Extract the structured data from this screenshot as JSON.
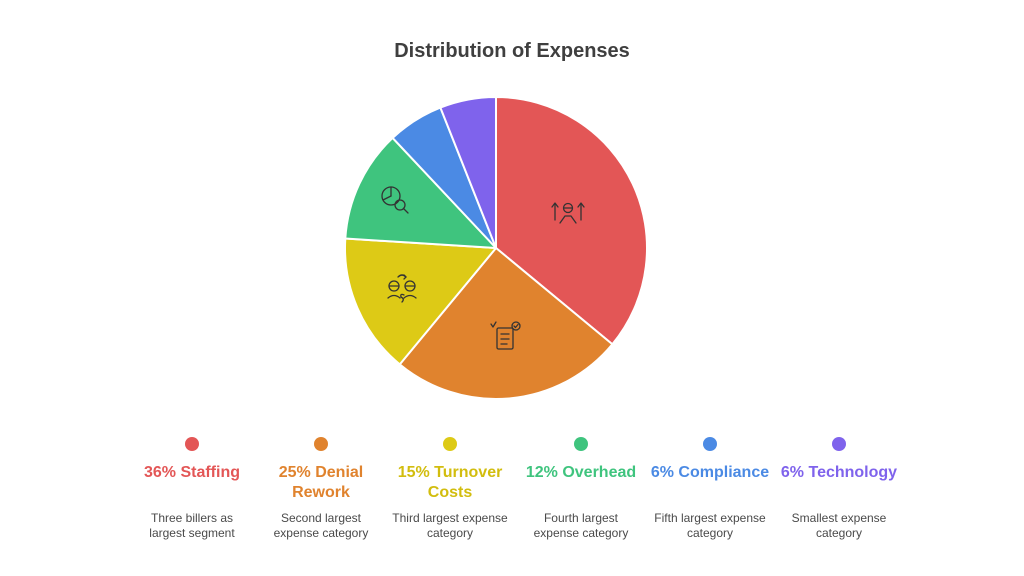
{
  "chart_data": {
    "type": "pie",
    "title": "Distribution of Expenses",
    "categories": [
      "Staffing",
      "Denial Rework",
      "Turnover Costs",
      "Overhead",
      "Compliance",
      "Technology"
    ],
    "values": [
      36,
      25,
      15,
      12,
      6,
      6
    ],
    "colors": [
      "#e35656",
      "#e0832e",
      "#ddca16",
      "#3fc47e",
      "#4b8ae4",
      "#7f63ec"
    ],
    "icons": [
      "people-arrows-icon",
      "checklist-document-icon",
      "people-money-icon",
      "pie-magnifier-icon",
      "",
      ""
    ],
    "legend_position": "bottom"
  },
  "legend": [
    {
      "label": "36% Staffing",
      "description": "Three billers as largest segment",
      "color": "#e35656"
    },
    {
      "label": "25% Denial Rework",
      "description": "Second largest expense category",
      "color": "#e0832e"
    },
    {
      "label": "15% Turnover Costs",
      "description": "Third largest expense category",
      "color": "#ddca16"
    },
    {
      "label": "12% Overhead",
      "description": "Fourth largest expense category",
      "color": "#3fc47e"
    },
    {
      "label": "6% Compliance",
      "description": "Fifth largest expense category",
      "color": "#4b8ae4"
    },
    {
      "label": "6% Technology",
      "description": "Smallest expense category",
      "color": "#7f63ec"
    }
  ]
}
